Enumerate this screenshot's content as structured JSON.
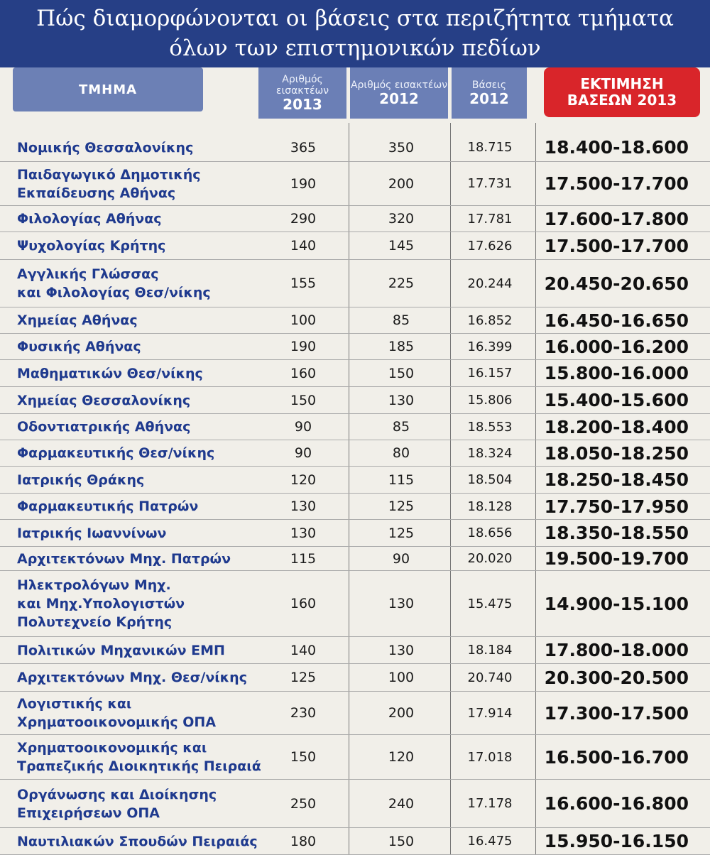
{
  "title": {
    "line1": "Πώς διαμορφώνονται οι βάσεις στα περιζήτητα τμήματα",
    "line2": "όλων των επιστημονικών πεδίων"
  },
  "header": {
    "dept": "ΤΜΗΜΑ",
    "admitted2013_label": "Αριθμός εισακτέων",
    "admitted2013_year": "2013",
    "admitted2012_label": "Αριθμός εισακτέων",
    "admitted2012_year": "2012",
    "bases2012_label": "Βάσεις",
    "bases2012_year": "2012",
    "estimate_line1": "ΕΚΤΙΜΗΣΗ",
    "estimate_line2": "ΒΑΣΕΩΝ 2013"
  },
  "rows": [
    {
      "name": "Νομικής Θεσσαλονίκης",
      "n2013": "365",
      "n2012": "350",
      "base2012": "18.715",
      "estimate": "18.400-18.600"
    },
    {
      "name": "Παιδαγωγικό Δημοτικής\nΕκπαίδευσης Αθήνας",
      "n2013": "190",
      "n2012": "200",
      "base2012": "17.731",
      "estimate": "17.500-17.700"
    },
    {
      "name": "Φιλολογίας Αθήνας",
      "n2013": "290",
      "n2012": "320",
      "base2012": "17.781",
      "estimate": "17.600-17.800"
    },
    {
      "name": "Ψυχολογίας Κρήτης",
      "n2013": "140",
      "n2012": "145",
      "base2012": "17.626",
      "estimate": "17.500-17.700"
    },
    {
      "name": "Αγγλικής Γλώσσας\nκαι Φιλολογίας Θεσ/νίκης",
      "n2013": "155",
      "n2012": "225",
      "base2012": "20.244",
      "estimate": "20.450-20.650"
    },
    {
      "name": "Χημείας Αθήνας",
      "n2013": "100",
      "n2012": "85",
      "base2012": "16.852",
      "estimate": "16.450-16.650"
    },
    {
      "name": "Φυσικής Αθήνας",
      "n2013": "190",
      "n2012": "185",
      "base2012": "16.399",
      "estimate": "16.000-16.200"
    },
    {
      "name": "Μαθηματικών Θεσ/νίκης",
      "n2013": "160",
      "n2012": "150",
      "base2012": "16.157",
      "estimate": "15.800-16.000"
    },
    {
      "name": "Χημείας Θεσσαλονίκης",
      "n2013": "150",
      "n2012": "130",
      "base2012": "15.806",
      "estimate": "15.400-15.600"
    },
    {
      "name": "Οδοντιατρικής Αθήνας",
      "n2013": "90",
      "n2012": "85",
      "base2012": "18.553",
      "estimate": "18.200-18.400"
    },
    {
      "name": "Φαρμακευτικής Θεσ/νίκης",
      "n2013": "90",
      "n2012": "80",
      "base2012": "18.324",
      "estimate": "18.050-18.250"
    },
    {
      "name": "Ιατρικής Θράκης",
      "n2013": "120",
      "n2012": "115",
      "base2012": "18.504",
      "estimate": "18.250-18.450"
    },
    {
      "name": "Φαρμακευτικής Πατρών",
      "n2013": "130",
      "n2012": "125",
      "base2012": "18.128",
      "estimate": "17.750-17.950"
    },
    {
      "name": "Ιατρικής Ιωαννίνων",
      "n2013": "130",
      "n2012": "125",
      "base2012": "18.656",
      "estimate": "18.350-18.550"
    },
    {
      "name": "Αρχιτεκτόνων Μηχ. Πατρών",
      "n2013": "115",
      "n2012": "90",
      "base2012": "20.020",
      "estimate": "19.500-19.700"
    },
    {
      "name": "Ηλεκτρολόγων Μηχ.\nκαι Μηχ.Υπολογιστών\nΠολυτεχνείο Κρήτης",
      "n2013": "160",
      "n2012": "130",
      "base2012": "15.475",
      "estimate": "14.900-15.100"
    },
    {
      "name": "Πολιτικών Μηχανικών ΕΜΠ",
      "n2013": "140",
      "n2012": "130",
      "base2012": "18.184",
      "estimate": "17.800-18.000"
    },
    {
      "name": "Αρχιτεκτόνων Μηχ. Θεσ/νίκης",
      "n2013": "125",
      "n2012": "100",
      "base2012": "20.740",
      "estimate": "20.300-20.500"
    },
    {
      "name": "Λογιστικής και\nΧρηματοοικονομικής ΟΠΑ",
      "n2013": "230",
      "n2012": "200",
      "base2012": "17.914",
      "estimate": "17.300-17.500"
    },
    {
      "name": "Χρηματοοικονομικής και\nΤραπεζικής Διοικητικής Πειραιά",
      "n2013": "150",
      "n2012": "120",
      "base2012": "17.018",
      "estimate": "16.500-16.700"
    },
    {
      "name": "Οργάνωσης και Διοίκησης\nΕπιχειρήσεων ΟΠΑ",
      "n2013": "250",
      "n2012": "240",
      "base2012": "17.178",
      "estimate": "16.600-16.800"
    },
    {
      "name": "Ναυτιλιακών Σπουδών Πειραιάς",
      "n2013": "180",
      "n2012": "150",
      "base2012": "16.475",
      "estimate": "15.950-16.150"
    }
  ]
}
